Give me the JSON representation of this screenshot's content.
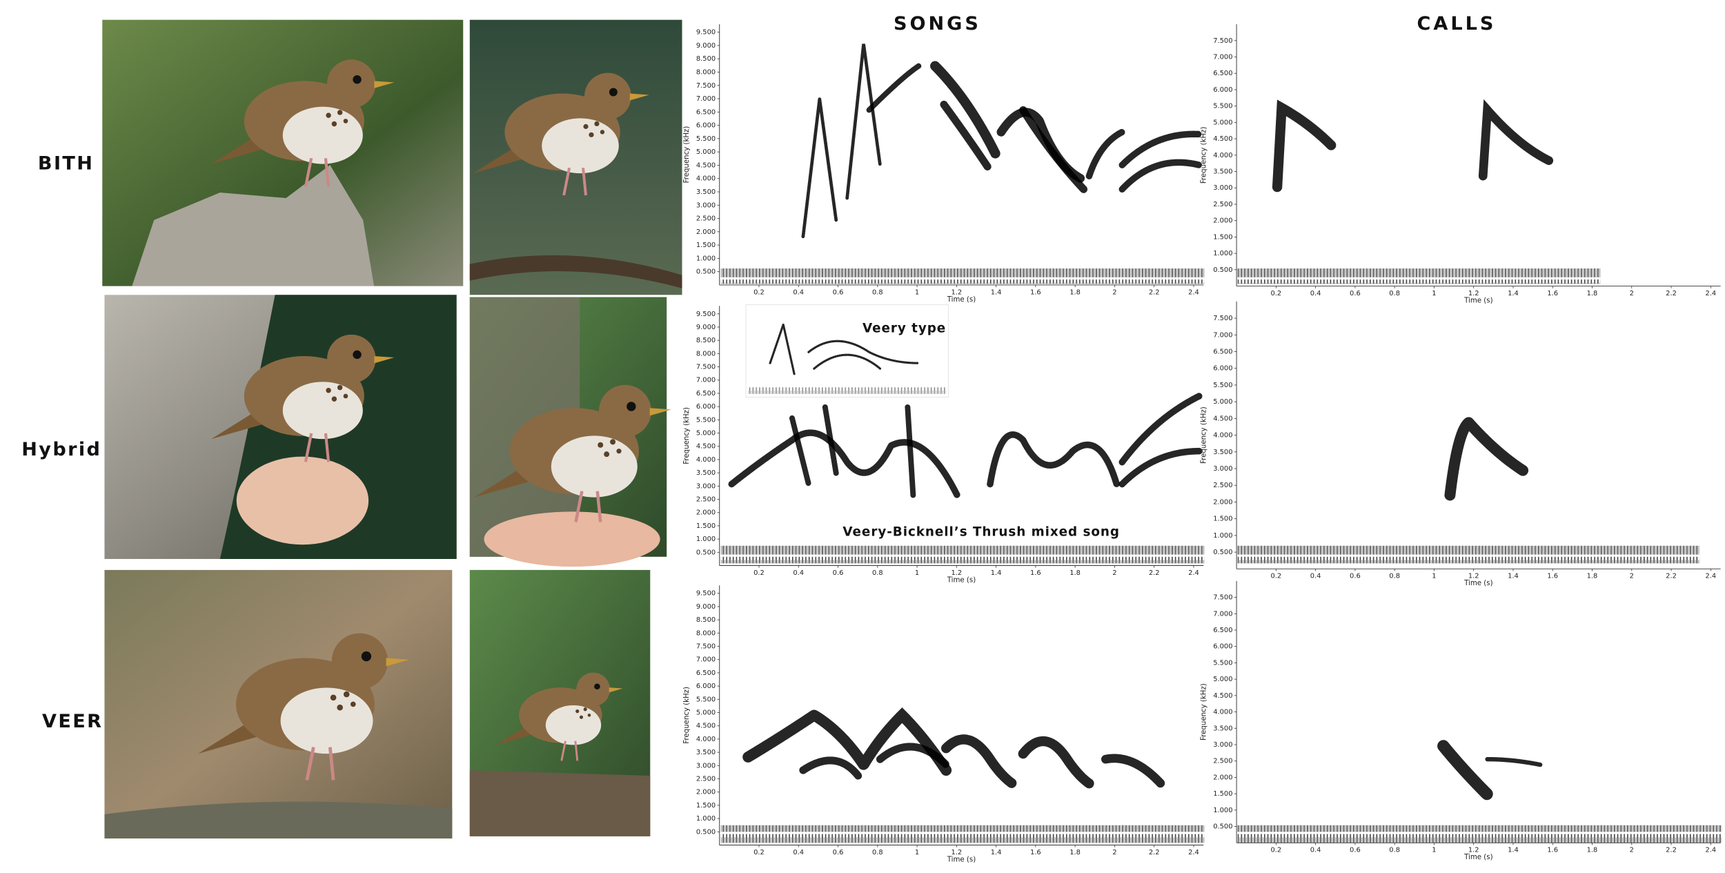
{
  "column_headers": {
    "songs": "SONGS",
    "calls": "CALLS"
  },
  "axes": {
    "x_label": "Time (s)",
    "y_label": "Frequency (kHz)",
    "xlim": [
      0,
      2.45
    ],
    "xticks": [
      0.2,
      0.4,
      0.6,
      0.8,
      1,
      1.2,
      1.4,
      1.6,
      1.8,
      2,
      2.2,
      2.4
    ],
    "songs": {
      "ylim": [
        0,
        9.8
      ],
      "yticks": [
        {
          "value": 0.5,
          "label": "0.500"
        },
        {
          "value": 1,
          "label": "1.000"
        },
        {
          "value": 1.5,
          "label": "1.500"
        },
        {
          "value": 2,
          "label": "2.000"
        },
        {
          "value": 2.5,
          "label": "2.500"
        },
        {
          "value": 3,
          "label": "3.000"
        },
        {
          "value": 3.5,
          "label": "3.500"
        },
        {
          "value": 4,
          "label": "4.000"
        },
        {
          "value": 4.5,
          "label": "4.500"
        },
        {
          "value": 5,
          "label": "5.000"
        },
        {
          "value": 5.5,
          "label": "5.500"
        },
        {
          "value": 6,
          "label": "6.000"
        },
        {
          "value": 6.5,
          "label": "6.500"
        },
        {
          "value": 7,
          "label": "7.000"
        },
        {
          "value": 7.5,
          "label": "7.500"
        },
        {
          "value": 8,
          "label": "8.000"
        },
        {
          "value": 8.5,
          "label": "8.500"
        },
        {
          "value": 9,
          "label": "9.000"
        },
        {
          "value": 9.5,
          "label": "9.500"
        }
      ]
    },
    "calls": {
      "ylim": [
        0,
        8
      ],
      "yticks": [
        {
          "value": 0.5,
          "label": "0.500"
        },
        {
          "value": 1,
          "label": "1.000"
        },
        {
          "value": 1.5,
          "label": "1.500"
        },
        {
          "value": 2,
          "label": "2.000"
        },
        {
          "value": 2.5,
          "label": "2.500"
        },
        {
          "value": 3,
          "label": "3.000"
        },
        {
          "value": 3.5,
          "label": "3.500"
        },
        {
          "value": 4,
          "label": "4.000"
        },
        {
          "value": 4.5,
          "label": "4.500"
        },
        {
          "value": 5,
          "label": "5.000"
        },
        {
          "value": 5.5,
          "label": "5.500"
        },
        {
          "value": 6,
          "label": "6.000"
        },
        {
          "value": 6.5,
          "label": "6.500"
        },
        {
          "value": 7,
          "label": "7.000"
        },
        {
          "value": 7.5,
          "label": "7.500"
        }
      ]
    }
  },
  "rows": [
    {
      "label": "BITH"
    },
    {
      "label": "Hybrid",
      "inset_label": "Veery type",
      "song_caption": "Veery-Bicknell’s Thrush mixed song"
    },
    {
      "label": "VEER"
    }
  ]
}
